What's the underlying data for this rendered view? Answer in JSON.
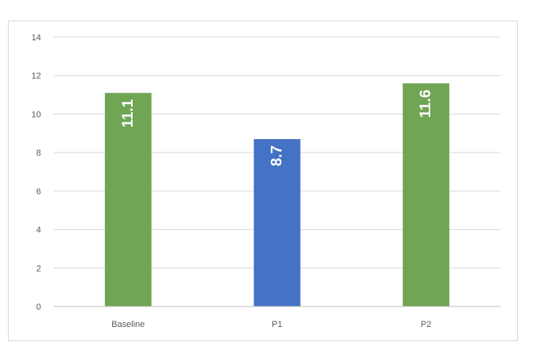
{
  "chart_data": {
    "type": "bar",
    "categories": [
      "Baseline",
      "P1",
      "P2"
    ],
    "values": [
      11.1,
      8.7,
      11.6
    ],
    "data_labels": [
      "11.1",
      "8.7",
      "11.6"
    ],
    "colors": [
      "#70a554",
      "#4472c4",
      "#70a554"
    ],
    "ylim": [
      0,
      14
    ],
    "yticks": [
      "0",
      "2",
      "4",
      "6",
      "8",
      "10",
      "12",
      "14"
    ],
    "grid": true,
    "title": "",
    "xlabel": "",
    "ylabel": ""
  }
}
